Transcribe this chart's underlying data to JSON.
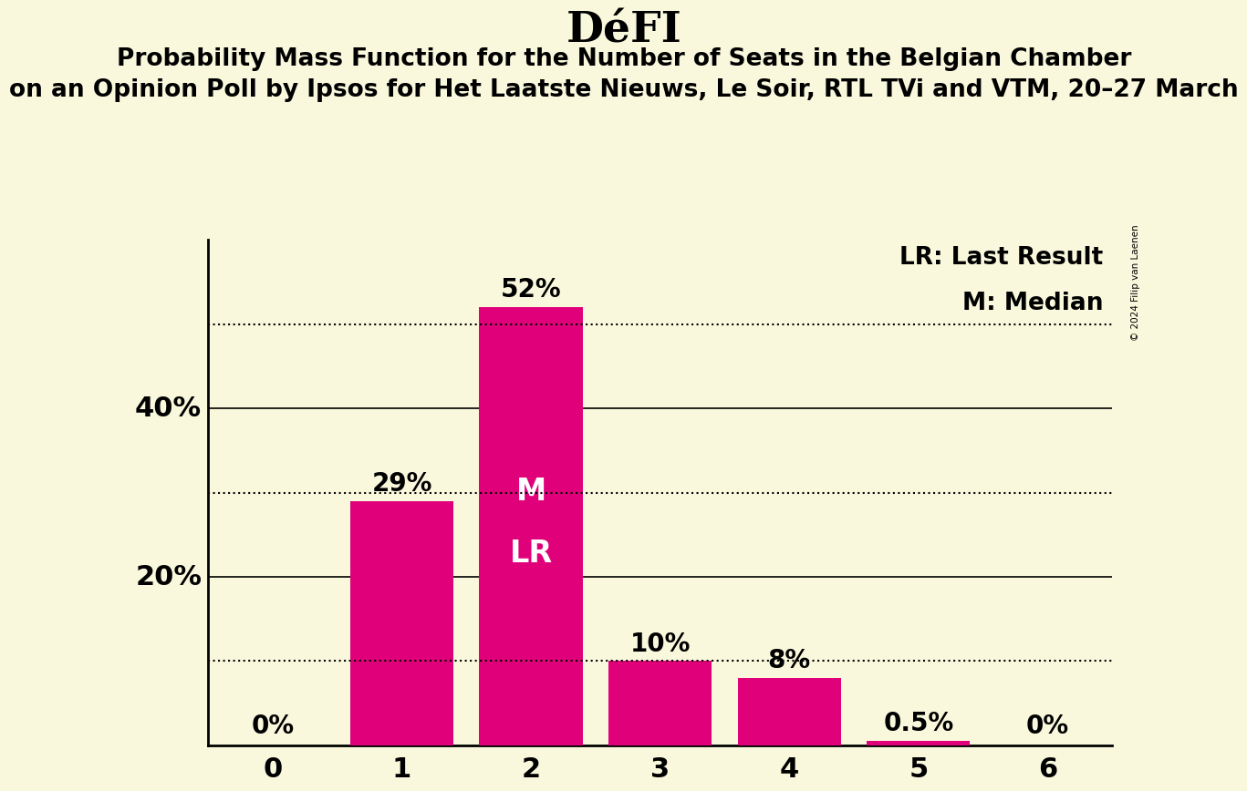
{
  "title": "DéFI",
  "subtitle1": "Probability Mass Function for the Number of Seats in the Belgian Chamber",
  "subtitle2": "on an Opinion Poll by Ipsos for Het Laatste Nieuws, Le Soir, RTL TVi and VTM, 20–27 March",
  "copyright": "© 2024 Filip van Laenen",
  "categories": [
    0,
    1,
    2,
    3,
    4,
    5,
    6
  ],
  "values": [
    0.0,
    0.29,
    0.52,
    0.1,
    0.08,
    0.005,
    0.0
  ],
  "bar_labels": [
    "0%",
    "29%",
    "52%",
    "10%",
    "8%",
    "0.5%",
    "0%"
  ],
  "bar_color": "#E0007A",
  "background_color": "#FAF8DC",
  "median_seat": 2,
  "last_result_seat": 2,
  "label_lr": "LR: Last Result",
  "label_m": "M: Median",
  "dotted_lines": [
    0.1,
    0.3,
    0.5
  ],
  "solid_lines": [
    0.2,
    0.4
  ],
  "y_text_labels": [
    [
      0.2,
      "20%"
    ],
    [
      0.4,
      "40%"
    ]
  ],
  "xlim": [
    -0.5,
    6.5
  ],
  "ylim": [
    0,
    0.6
  ],
  "bar_width": 0.8,
  "title_fontsize": 34,
  "subtitle_fontsize": 19,
  "tick_fontsize": 22,
  "label_fontsize": 20,
  "inner_label_fontsize": 24,
  "legend_fontsize": 19
}
